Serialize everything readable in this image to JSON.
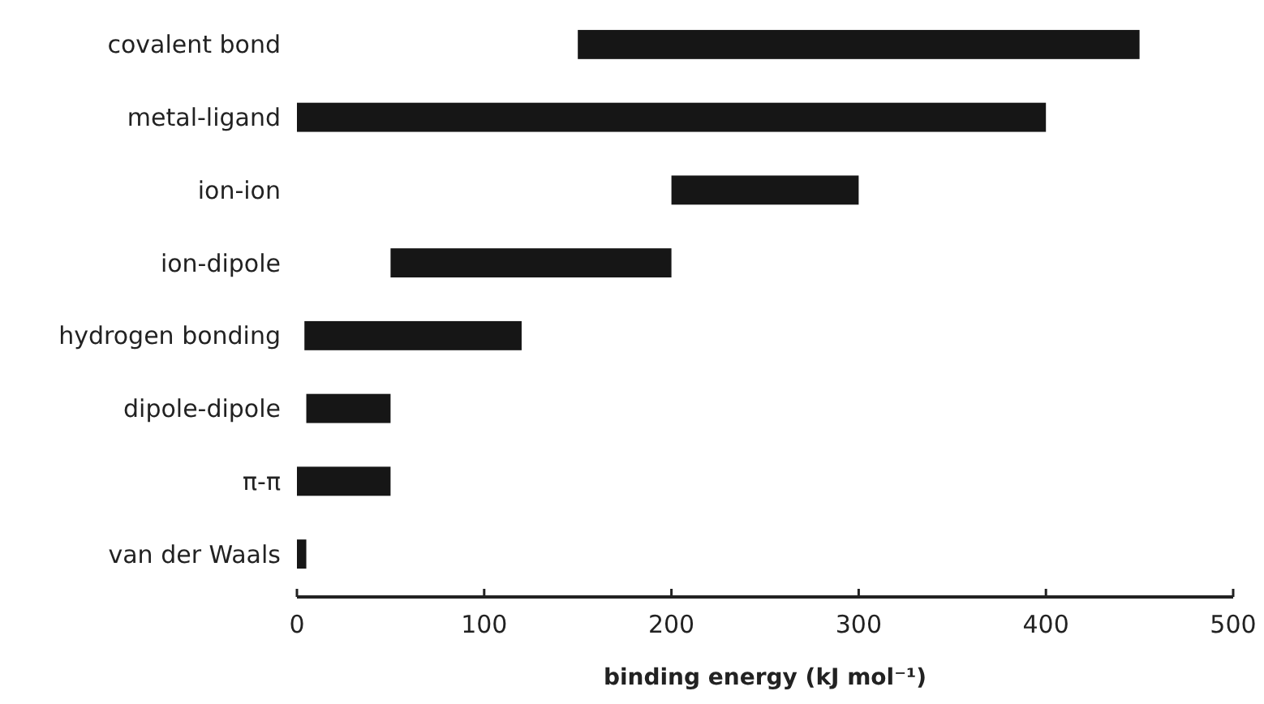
{
  "chart_data": {
    "type": "bar",
    "orientation": "horizontal",
    "xlabel": "binding energy (kJ mol⁻¹)",
    "categories": [
      "covalent bond",
      "metal-ligand",
      "ion-ion",
      "ion-dipole",
      "hydrogen bonding",
      "dipole-dipole",
      "π-π",
      "van der Waals"
    ],
    "base": [
      150,
      0,
      200,
      50,
      4,
      5,
      0,
      0
    ],
    "values": [
      300,
      400,
      100,
      150,
      116,
      45,
      50,
      5
    ],
    "color": "#161616",
    "xlim": [
      0,
      500
    ],
    "xticks": [
      0,
      100,
      200,
      300,
      400,
      500
    ]
  }
}
